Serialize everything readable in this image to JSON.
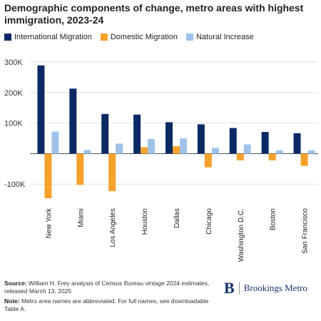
{
  "title": "Demographic components of change, metro areas with highest immigration, 2023-24",
  "legend": [
    {
      "label": "International Migration",
      "color": "#0b2a64"
    },
    {
      "label": "Domestic Migration",
      "color": "#f6a12a"
    },
    {
      "label": "Natural Increase",
      "color": "#9ec2ea"
    }
  ],
  "chart_data": {
    "type": "bar",
    "title": "Demographic components of change, metro areas with highest immigration, 2023-24",
    "categories": [
      "New York",
      "Miami",
      "Los Angeles",
      "Houston",
      "Dallas",
      "Chicago",
      "Washington D.C.",
      "Boston",
      "San Francisco"
    ],
    "series": [
      {
        "name": "International Migration",
        "color": "#0b2a64",
        "values": [
          289000,
          213000,
          130000,
          128000,
          103000,
          96000,
          84000,
          71000,
          67000
        ]
      },
      {
        "name": "Domestic Migration",
        "color": "#f6a12a",
        "values": [
          -146000,
          -102000,
          -123000,
          21000,
          24000,
          -45000,
          -22000,
          -22000,
          -40000
        ]
      },
      {
        "name": "Natural Increase",
        "color": "#9ec2ea",
        "values": [
          72000,
          12000,
          33000,
          48000,
          50000,
          19000,
          30000,
          11000,
          11000
        ]
      }
    ],
    "yticks": [
      -100000,
      0,
      100000,
      200000,
      300000
    ],
    "ytick_labels": [
      "-100K",
      "",
      "100K",
      "200K",
      "300K"
    ],
    "ylim": [
      -165000,
      300000
    ],
    "grid": true,
    "legend_position": "top-left"
  },
  "footer": {
    "source_label": "Source:",
    "source_text": "William H. Frey analysis of Census Bureau vintage 2024 estimates, released March 13, 2025",
    "note_label": "Note:",
    "note_text": "Metro area names are abbreviated. For full names, see downloadable Table A."
  },
  "brand": {
    "logo": "B",
    "name": "Brookings Metro"
  }
}
